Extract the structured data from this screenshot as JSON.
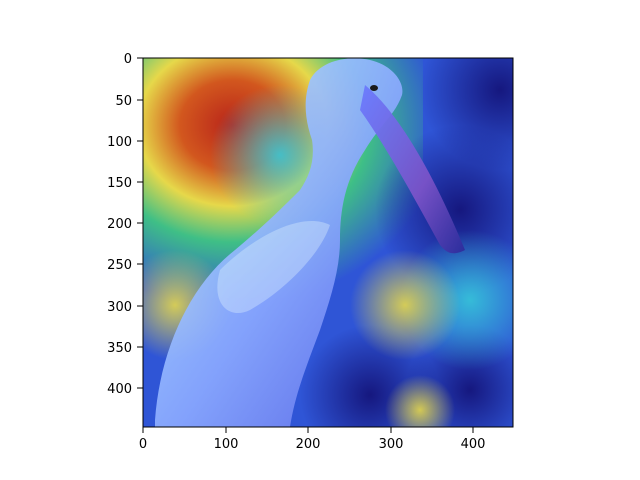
{
  "figure": {
    "image_description_semantic": "pelican-heatmap-overlay",
    "axes": {
      "x_ticks": [
        0,
        100,
        200,
        300,
        400
      ],
      "y_ticks": [
        0,
        50,
        100,
        150,
        200,
        250,
        300,
        350,
        400
      ],
      "x_range": [
        0,
        448
      ],
      "y_range": [
        0,
        448
      ]
    },
    "heatmap": {
      "colormap": "jet",
      "hot_regions": [
        "upper-left"
      ],
      "cool_regions": [
        "bird-body",
        "upper-right",
        "bottom"
      ]
    },
    "colors": {
      "deep_blue": "#1a1a8c",
      "blue": "#2f55d6",
      "cyan": "#36c7d8",
      "green": "#3fbf86",
      "yellow": "#e6d84a",
      "orange": "#e58a25",
      "red": "#b8231a",
      "bird": "#a7d8f5",
      "bird_shadow": "#5b66e6"
    }
  }
}
